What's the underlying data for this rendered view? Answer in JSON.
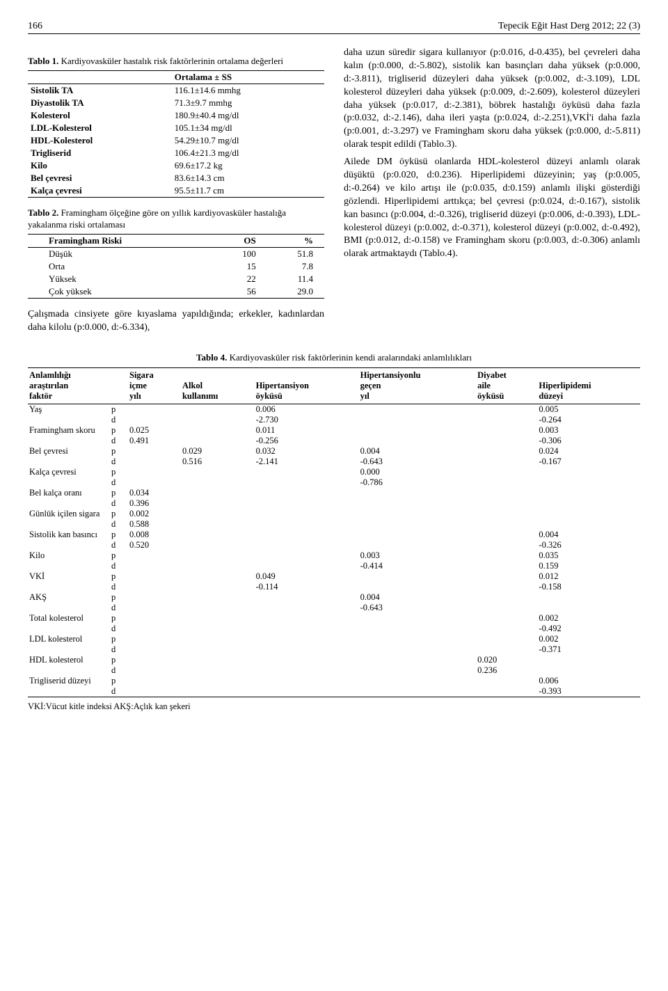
{
  "header": {
    "page_num": "166",
    "journal": "Tepecik Eğit Hast Derg 2012; 22 (3)"
  },
  "table1": {
    "caption_label": "Tablo 1.",
    "caption_text": "Kardiyovasküler hastalık risk faktörlerinin ortalama değerleri",
    "col_header": "Ortalama ± SS",
    "rows": [
      {
        "k": "Sistolik TA",
        "v": "116.1±14.6 mmhg"
      },
      {
        "k": "Diyastolik TA",
        "v": "71.3±9.7 mmhg"
      },
      {
        "k": "Kolesterol",
        "v": "180.9±40.4 mg/dl"
      },
      {
        "k": "LDL-Kolesterol",
        "v": "105.1±34 mg/dl"
      },
      {
        "k": "HDL-Kolesterol",
        "v": "54.29±10.7 mg/dl"
      },
      {
        "k": "Trigliserid",
        "v": "106.4±21.3 mg/dl"
      },
      {
        "k": "Kilo",
        "v": "69.6±17.2 kg"
      },
      {
        "k": "Bel çevresi",
        "v": "83.6±14.3 cm"
      },
      {
        "k": "Kalça çevresi",
        "v": "95.5±11.7 cm"
      }
    ]
  },
  "table2": {
    "caption_label": "Tablo 2.",
    "caption_text": "Framingham ölçeğine göre on yıllık kardiyovasküler hastalığa yakalanma riski ortalaması",
    "header": {
      "c1": "Framingham Riski",
      "c2": "OS",
      "c3": "%"
    },
    "rows": [
      {
        "c1": "Düşük",
        "c2": "100",
        "c3": "51.8"
      },
      {
        "c1": "Orta",
        "c2": "15",
        "c3": "7.8"
      },
      {
        "c1": "Yüksek",
        "c2": "22",
        "c3": "11.4"
      },
      {
        "c1": "Çok yüksek",
        "c2": "56",
        "c3": "29.0"
      }
    ]
  },
  "para_left": "Çalışmada cinsiyete göre kıyaslama yapıldığında; erkekler, kadınlardan daha kilolu (p:0.000, d:-6.334),",
  "para_right_1": "daha uzun süredir sigara kullanıyor (p:0.016, d-0.435), bel çevreleri daha kalın (p:0.000, d:-5.802), sistolik kan basınçları daha yüksek (p:0.000, d:-3.811), trigliserid düzeyleri daha yüksek (p:0.002, d:-3.109), LDL kolesterol düzeyleri daha yüksek (p:0.009, d:-2.609), kolesterol düzeyleri daha yüksek (p:0.017, d:-2.381), böbrek hastalığı öyküsü daha fazla (p:0.032, d:-2.146), daha ileri yaşta (p:0.024, d:-2.251),VKİ'i daha fazla (p:0.001, d:-3.297) ve Framingham skoru daha yüksek (p:0.000, d:-5.811) olarak tespit edildi (Tablo.3).",
  "para_right_2": "Ailede DM öyküsü olanlarda HDL-kolesterol düzeyi anlamlı olarak düşüktü (p:0.020, d:0.236). Hiperlipidemi düzeyinin; yaş (p:0.005, d:-0.264) ve kilo artışı ile (p:0.035, d:0.159) anlamlı ilişki gösterdiği gözlendi. Hiperlipidemi arttıkça; bel çevresi (p:0.024, d:-0.167), sistolik kan basıncı (p:0.004, d:-0.326), trigliserid düzeyi (p:0.006, d:-0.393), LDL-kolesterol düzeyi (p:0.002, d:-0.371), kolesterol düzeyi (p:0.002, d:-0.492), BMI (p:0.012, d:-0.158) ve Framingham skoru (p:0.003, d:-0.306) anlamlı olarak artmaktaydı (Tablo.4).",
  "table4": {
    "caption_label": "Tablo 4.",
    "caption_text": "Kardiyovasküler risk faktörlerinin kendi aralarındaki anlamlılıkları",
    "headers": [
      "Anlamlılığı araştırılan faktör",
      "",
      "Sigara içme yılı",
      "Alkol kullanımı",
      "Hipertansiyon öyküsü",
      "Hipertansiyonlu geçen yıl",
      "Diyabet aile öyküsü",
      "Hiperlipidemi düzeyi"
    ],
    "rows": [
      {
        "lab": "Yaş",
        "p": [
          "",
          "",
          "0.006",
          "",
          "",
          "0.005"
        ],
        "d": [
          "",
          "",
          "-2.730",
          "",
          "",
          "-0.264"
        ]
      },
      {
        "lab": "Framingham skoru",
        "p": [
          "0.025",
          "",
          "0.011",
          "",
          "",
          "0.003"
        ],
        "d": [
          "0.491",
          "",
          "-0.256",
          "",
          "",
          "-0.306"
        ]
      },
      {
        "lab": "Bel çevresi",
        "p": [
          "",
          "0.029",
          "0.032",
          "0.004",
          "",
          "0.024"
        ],
        "d": [
          "",
          "0.516",
          "-2.141",
          "-0.643",
          "",
          "-0.167"
        ]
      },
      {
        "lab": "Kalça çevresi",
        "p": [
          "",
          "",
          "",
          "0.000",
          "",
          ""
        ],
        "d": [
          "",
          "",
          "",
          "-0.786",
          "",
          ""
        ]
      },
      {
        "lab": "Bel kalça oranı",
        "p": [
          "0.034",
          "",
          "",
          "",
          "",
          ""
        ],
        "d": [
          "0.396",
          "",
          "",
          "",
          "",
          ""
        ]
      },
      {
        "lab": "Günlük içilen sigara",
        "p": [
          "0.002",
          "",
          "",
          "",
          "",
          ""
        ],
        "d": [
          "0.588",
          "",
          "",
          "",
          "",
          ""
        ]
      },
      {
        "lab": "Sistolik kan basıncı",
        "p": [
          "0.008",
          "",
          "",
          "",
          "",
          "0.004"
        ],
        "d": [
          "0.520",
          "",
          "",
          "",
          "",
          "-0.326"
        ]
      },
      {
        "lab": "Kilo",
        "p": [
          "",
          "",
          "",
          "0.003",
          "",
          "0.035"
        ],
        "d": [
          "",
          "",
          "",
          "-0.414",
          "",
          "0.159"
        ]
      },
      {
        "lab": "VKİ",
        "p": [
          "",
          "",
          "0.049",
          "",
          "",
          "0.012"
        ],
        "d": [
          "",
          "",
          "-0.114",
          "",
          "",
          "-0.158"
        ]
      },
      {
        "lab": "AKŞ",
        "p": [
          "",
          "",
          "",
          "0.004",
          "",
          ""
        ],
        "d": [
          "",
          "",
          "",
          "-0.643",
          "",
          ""
        ]
      },
      {
        "lab": "Total kolesterol",
        "p": [
          "",
          "",
          "",
          "",
          "",
          "0.002"
        ],
        "d": [
          "",
          "",
          "",
          "",
          "",
          "-0.492"
        ]
      },
      {
        "lab": "LDL kolesterol",
        "p": [
          "",
          "",
          "",
          "",
          "",
          "0.002"
        ],
        "d": [
          "",
          "",
          "",
          "",
          "",
          "-0.371"
        ]
      },
      {
        "lab": "HDL kolesterol",
        "p": [
          "",
          "",
          "",
          "",
          "0.020",
          ""
        ],
        "d": [
          "",
          "",
          "",
          "",
          "0.236",
          ""
        ]
      },
      {
        "lab": "Trigliserid düzeyi",
        "p": [
          "",
          "",
          "",
          "",
          "",
          "0.006"
        ],
        "d": [
          "",
          "",
          "",
          "",
          "",
          "-0.393"
        ]
      }
    ],
    "footnote": "VKİ:Vücut kitle indeksi AKŞ:Açlık kan şekeri"
  }
}
